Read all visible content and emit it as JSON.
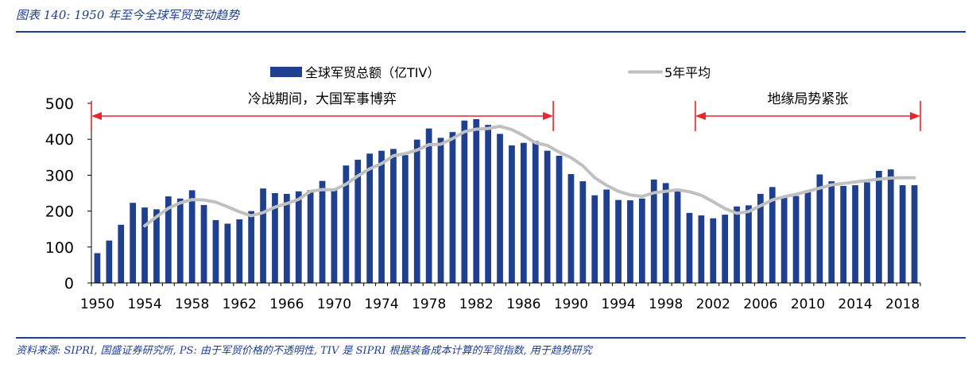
{
  "figure": {
    "title": "图表 140:  1950 年至今全球军贸变动趋势",
    "source": "资料来源: SIPRI, 国盛证券研究所, PS: 由于军贸价格的不透明性, TIV 是 SIPRI 根据装备成本计算的军贸指数, 用于趋势研究"
  },
  "colors": {
    "bar": "#1f3f8f",
    "avg_line": "#c0c0c0",
    "arrow": "#e8262b",
    "rule": "#1f3f8f"
  },
  "chart_data": {
    "type": "bar",
    "x": [
      1950,
      1951,
      1952,
      1953,
      1954,
      1955,
      1956,
      1957,
      1958,
      1959,
      1960,
      1961,
      1962,
      1963,
      1964,
      1965,
      1966,
      1967,
      1968,
      1969,
      1970,
      1971,
      1972,
      1973,
      1974,
      1975,
      1976,
      1977,
      1978,
      1979,
      1980,
      1981,
      1982,
      1983,
      1984,
      1985,
      1986,
      1987,
      1988,
      1989,
      1990,
      1991,
      1992,
      1993,
      1994,
      1995,
      1996,
      1997,
      1998,
      1999,
      2000,
      2001,
      2002,
      2003,
      2004,
      2005,
      2006,
      2007,
      2008,
      2009,
      2010,
      2011,
      2012,
      2013,
      2014,
      2015,
      2016,
      2017,
      2018,
      2019
    ],
    "series": [
      {
        "name": "全球军贸总额（亿TIV）",
        "values": [
          83,
          118,
          162,
          223,
          210,
          205,
          241,
          235,
          258,
          217,
          175,
          165,
          177,
          200,
          263,
          250,
          248,
          255,
          258,
          284,
          258,
          327,
          343,
          360,
          368,
          373,
          356,
          399,
          430,
          404,
          420,
          452,
          456,
          440,
          415,
          383,
          390,
          395,
          368,
          354,
          303,
          283,
          244,
          260,
          231,
          230,
          235,
          288,
          278,
          255,
          195,
          188,
          180,
          190,
          213,
          216,
          248,
          267,
          240,
          242,
          258,
          302,
          283,
          270,
          272,
          280,
          312,
          316,
          272,
          272
        ]
      },
      {
        "name": "5年平均",
        "values": [
          null,
          null,
          null,
          null,
          159,
          184,
          208,
          223,
          232,
          231,
          225,
          212,
          198,
          187,
          196,
          211,
          221,
          233,
          255,
          260,
          259,
          275,
          298,
          318,
          332,
          354,
          360,
          370,
          385,
          386,
          402,
          421,
          428,
          430,
          436,
          427,
          410,
          390,
          383,
          364,
          349,
          326,
          293,
          272,
          255,
          245,
          241,
          251,
          255,
          259,
          254,
          244,
          226,
          207,
          194,
          199,
          215,
          231,
          240,
          247,
          255,
          264,
          273,
          277,
          281,
          285,
          289,
          292,
          293,
          293
        ]
      }
    ],
    "xticks": [
      "1950",
      "1954",
      "1958",
      "1962",
      "1966",
      "1970",
      "1974",
      "1978",
      "1982",
      "1986",
      "1990",
      "1994",
      "1998",
      "2002",
      "2006",
      "2010",
      "2014",
      "2018"
    ],
    "yticks": [
      "0",
      "100",
      "200",
      "300",
      "400",
      "500"
    ],
    "ylim": [
      0,
      500
    ],
    "legend_position": "top",
    "annotations": [
      {
        "text": "冷战期间，大国军事博弈",
        "x_start": 1950,
        "x_end": 1988
      },
      {
        "text": "地缘局势紧张",
        "x_start": 2001,
        "x_end": 2019
      }
    ],
    "grid": false
  }
}
